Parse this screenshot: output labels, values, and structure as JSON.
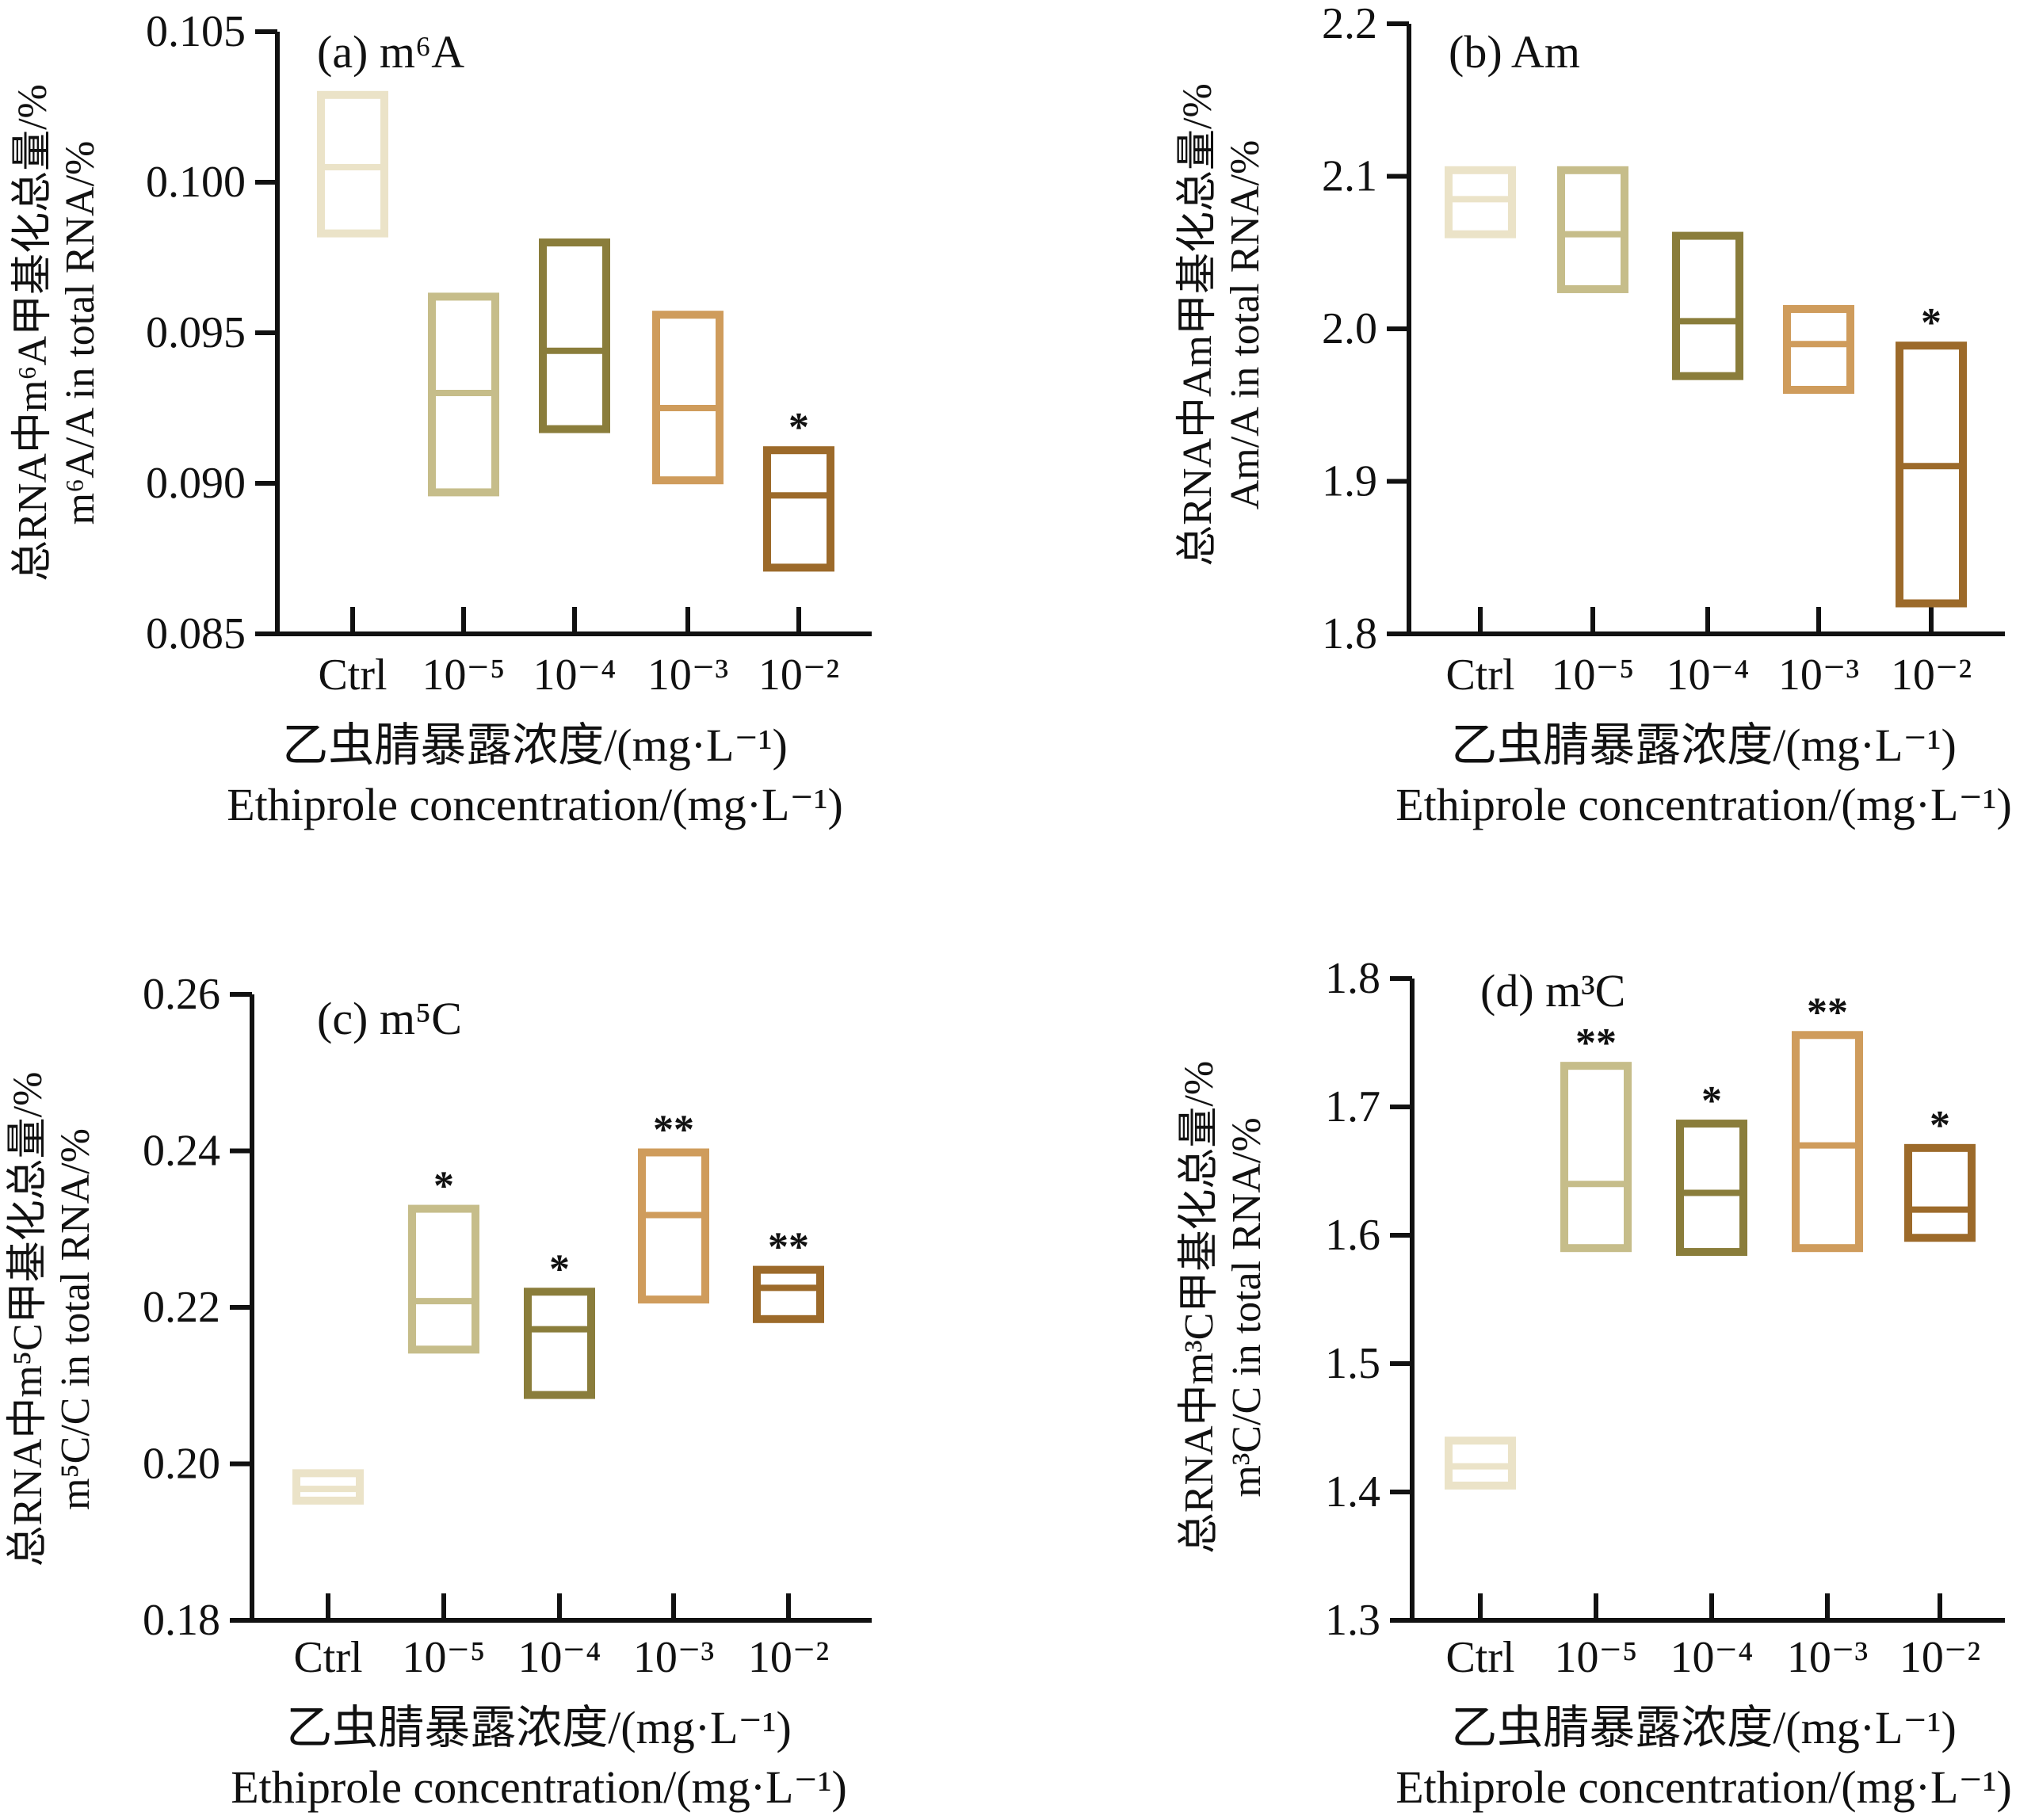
{
  "x_axis_label_cn": "乙虫腈暴露浓度/(mg·L⁻¹)",
  "x_axis_label_en": "Ethiprole concentration/(mg·L⁻¹)",
  "categories": [
    "Ctrl",
    "10⁻⁵",
    "10⁻⁴",
    "10⁻³",
    "10⁻²"
  ],
  "colors": [
    "#ebe3c8",
    "#c6bd8a",
    "#8a7d3b",
    "#cf9c5c",
    "#9c6a2a"
  ],
  "chart_data": [
    {
      "type": "box",
      "title": "(a) m⁶A",
      "ylabel_cn": "总RNA中m⁶A甲基化总量/%",
      "ylabel_en": "m⁶A/A in total RNA/%",
      "ylim": [
        0.085,
        0.105
      ],
      "yticks": [
        0.085,
        0.09,
        0.095,
        0.1,
        0.105
      ],
      "ytick_labels": [
        "0.085",
        "0.090",
        "0.095",
        "0.100",
        "0.105"
      ],
      "categories": [
        "Ctrl",
        "10⁻⁵",
        "10⁻⁴",
        "10⁻³",
        "10⁻²"
      ],
      "boxes": [
        {
          "low": 0.0983,
          "median": 0.1005,
          "high": 0.1029,
          "sig": ""
        },
        {
          "low": 0.0897,
          "median": 0.093,
          "high": 0.0962,
          "sig": ""
        },
        {
          "low": 0.0918,
          "median": 0.0944,
          "high": 0.098,
          "sig": ""
        },
        {
          "low": 0.0901,
          "median": 0.0925,
          "high": 0.0956,
          "sig": ""
        },
        {
          "low": 0.0872,
          "median": 0.0896,
          "high": 0.0911,
          "sig": "*"
        }
      ]
    },
    {
      "type": "box",
      "title": "(b) Am",
      "ylabel_cn": "总RNA中Am甲基化总量/%",
      "ylabel_en": "Am/A in total RNA/%",
      "ylim": [
        1.8,
        2.2
      ],
      "yticks": [
        1.8,
        1.9,
        2.0,
        2.1,
        2.2
      ],
      "ytick_labels": [
        "1.8",
        "1.9",
        "2.0",
        "2.1",
        "2.2"
      ],
      "categories": [
        "Ctrl",
        "10⁻⁵",
        "10⁻⁴",
        "10⁻³",
        "10⁻²"
      ],
      "boxes": [
        {
          "low": 2.062,
          "median": 2.085,
          "high": 2.104,
          "sig": ""
        },
        {
          "low": 2.026,
          "median": 2.062,
          "high": 2.104,
          "sig": ""
        },
        {
          "low": 1.969,
          "median": 2.005,
          "high": 2.061,
          "sig": ""
        },
        {
          "low": 1.96,
          "median": 1.99,
          "high": 2.013,
          "sig": ""
        },
        {
          "low": 1.82,
          "median": 1.91,
          "high": 1.989,
          "sig": "*"
        }
      ]
    },
    {
      "type": "box",
      "title": "(c) m⁵C",
      "ylabel_cn": "总RNA中m⁵C甲基化总量/%",
      "ylabel_en": "m⁵C/C in total RNA/%",
      "ylim": [
        0.18,
        0.26
      ],
      "yticks": [
        0.18,
        0.2,
        0.22,
        0.24,
        0.26
      ],
      "ytick_labels": [
        "0.18",
        "0.20",
        "0.22",
        "0.24",
        "0.26"
      ],
      "categories": [
        "Ctrl",
        "10⁻⁵",
        "10⁻⁴",
        "10⁻³",
        "10⁻²"
      ],
      "boxes": [
        {
          "low": 0.1953,
          "median": 0.1968,
          "high": 0.1988,
          "sig": ""
        },
        {
          "low": 0.2146,
          "median": 0.2208,
          "high": 0.2326,
          "sig": "*"
        },
        {
          "low": 0.2088,
          "median": 0.2172,
          "high": 0.222,
          "sig": "*"
        },
        {
          "low": 0.221,
          "median": 0.2318,
          "high": 0.2398,
          "sig": "**"
        },
        {
          "low": 0.2185,
          "median": 0.2225,
          "high": 0.2248,
          "sig": "**"
        }
      ]
    },
    {
      "type": "box",
      "title": "(d) m³C",
      "ylabel_cn": "总RNA中m³C甲基化总量/%",
      "ylabel_en": "m³C/C in total RNA/%",
      "ylim": [
        1.3,
        1.8
      ],
      "yticks": [
        1.3,
        1.4,
        1.5,
        1.6,
        1.7,
        1.8
      ],
      "ytick_labels": [
        "1.3",
        "1.4",
        "1.5",
        "1.6",
        "1.7",
        "1.8"
      ],
      "categories": [
        "Ctrl",
        "10⁻⁵",
        "10⁻⁴",
        "10⁻³",
        "10⁻²"
      ],
      "boxes": [
        {
          "low": 1.405,
          "median": 1.42,
          "high": 1.44,
          "sig": ""
        },
        {
          "low": 1.59,
          "median": 1.64,
          "high": 1.732,
          "sig": "**"
        },
        {
          "low": 1.587,
          "median": 1.633,
          "high": 1.687,
          "sig": "*"
        },
        {
          "low": 1.59,
          "median": 1.67,
          "high": 1.756,
          "sig": "**"
        },
        {
          "low": 1.598,
          "median": 1.62,
          "high": 1.668,
          "sig": "*"
        }
      ]
    }
  ]
}
